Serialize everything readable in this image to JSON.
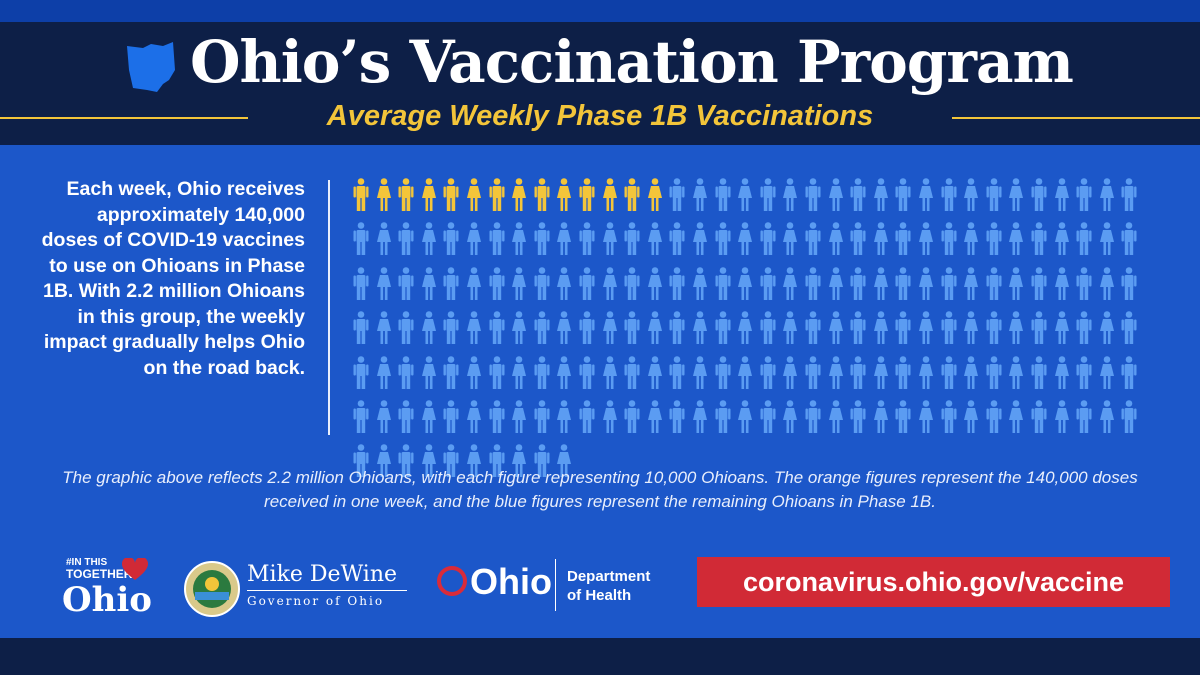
{
  "header": {
    "title": "Ohio’s Vaccination Program",
    "subtitle": "Average Weekly Phase 1B Vaccinations"
  },
  "description": "Each week, Ohio receives approximately 140,000 doses of COVID-19 vaccines to use on Ohioans in Phase 1B. With 2.2 million Ohioans in this group, the weekly impact gradually helps Ohio on the road back.",
  "pictograph": {
    "total_figures": 220,
    "highlighted_figures": 14,
    "columns": 35,
    "highlight_color": "#f3c53a",
    "base_color": "#5b9cf2"
  },
  "caption": "The graphic above reflects 2.2 million Ohioans, with each figure representing 10,000 Ohioans. The orange figures represent the 140,000 doses received in one week, and the blue figures represent the remaining Ohioans in Phase 1B.",
  "footer": {
    "together_small": [
      "#IN THIS",
      "TOGETHER"
    ],
    "together_big": "Ohio",
    "governor_name": "Mike DeWine",
    "governor_title": "Governor of Ohio",
    "odh_word": "Ohio",
    "odh_dept": [
      "Department",
      "of Health"
    ],
    "url": "coronavirus.ohio.gov/vaccine"
  },
  "colors": {
    "background": "#1c57c9",
    "dark_band": "#0d1f47",
    "accent_yellow": "#f3c53a",
    "accent_red": "#d12a36"
  }
}
